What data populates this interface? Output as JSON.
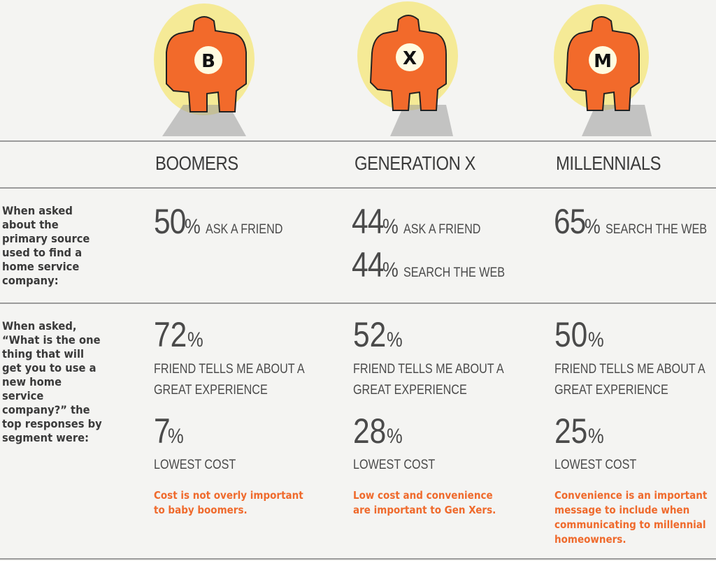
{
  "figures": [
    {
      "letter": "B",
      "color": "#f26a2b",
      "glow": "#f6e14b"
    },
    {
      "letter": "X",
      "color": "#f26a2b",
      "glow": "#f6e14b"
    },
    {
      "letter": "M",
      "color": "#f26a2b",
      "glow": "#f6e14b"
    }
  ],
  "columns": {
    "boomers": "BOOMERS",
    "genx": "GENERATION X",
    "millennials": "MILLENNIALS"
  },
  "questions": {
    "source": "When asked about the primary source used to find a home service company:",
    "one_thing": "When asked, “What is the one thing that will get you to use a new home service company?” the top responses by segment were:"
  },
  "source_stats": {
    "boomers": [
      {
        "value": "50",
        "unit": "%",
        "label": "ASK A FRIEND"
      }
    ],
    "genx": [
      {
        "value": "44",
        "unit": "%",
        "label": "ASK A FRIEND"
      },
      {
        "value": "44",
        "unit": "%",
        "label": "SEARCH THE WEB"
      }
    ],
    "millennials": [
      {
        "value": "65",
        "unit": "%",
        "label": "SEARCH THE WEB"
      }
    ]
  },
  "one_thing_stats": {
    "boomers": {
      "friend_value": "72",
      "friend_unit": "%",
      "friend_line1": "FRIEND TELLS ME ABOUT A",
      "friend_line2": "GREAT EXPERIENCE",
      "cost_value": "7",
      "cost_unit": "%",
      "cost_label": "LOWEST COST",
      "note_line1": "Cost is not overly important",
      "note_line2": "to baby boomers."
    },
    "genx": {
      "friend_value": "52",
      "friend_unit": "%",
      "friend_line1": "FRIEND TELLS ME ABOUT A",
      "friend_line2": "GREAT EXPERIENCE",
      "cost_value": "28",
      "cost_unit": "%",
      "cost_label": "LOWEST COST",
      "note_line1": "Low cost and convenience",
      "note_line2": "are important to Gen Xers."
    },
    "millennials": {
      "friend_value": "50",
      "friend_unit": "%",
      "friend_line1": "FRIEND TELLS ME ABOUT A",
      "friend_line2": "GREAT EXPERIENCE",
      "cost_value": "25",
      "cost_unit": "%",
      "cost_label": "LOWEST COST",
      "note_line1": "Convenience is an important",
      "note_line2": "message to include when",
      "note_line3": "communicating to millennial",
      "note_line4": "homeowners."
    }
  }
}
